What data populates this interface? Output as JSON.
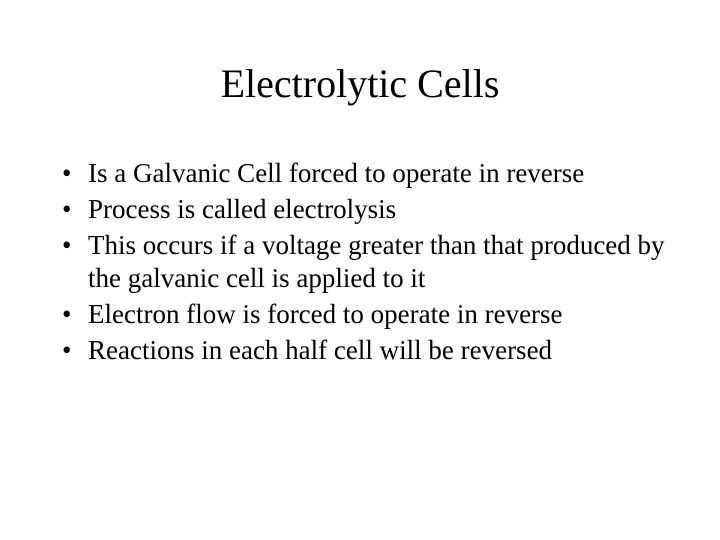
{
  "slide": {
    "title": "Electrolytic Cells",
    "title_fontsize": 40,
    "bullets": [
      "Is a Galvanic Cell forced to operate in reverse",
      "Process is called electrolysis",
      "This occurs if a voltage greater than that produced by the galvanic cell is applied to it",
      "Electron flow is forced to operate in reverse",
      "Reactions in each half cell will be reversed"
    ],
    "bullet_fontsize": 27,
    "background_color": "#ffffff",
    "text_color": "#000000",
    "font_family": "Times New Roman"
  }
}
